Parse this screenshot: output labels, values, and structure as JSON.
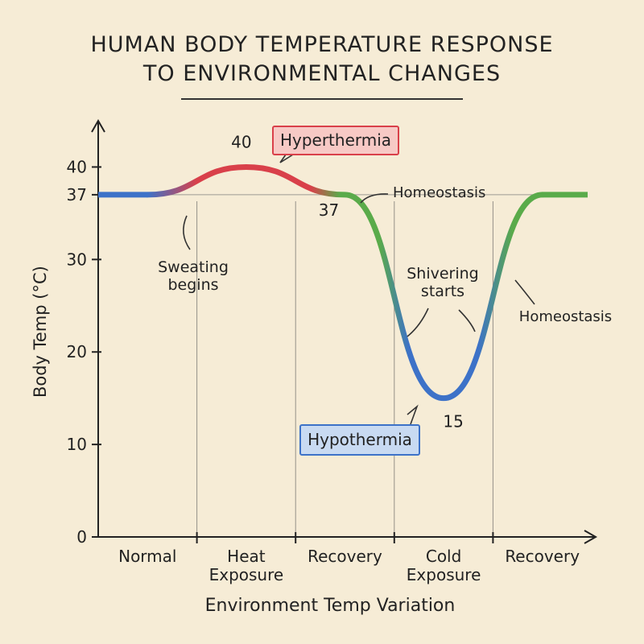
{
  "chart_data": {
    "type": "line",
    "title": "HUMAN BODY TEMPERATURE RESPONSE TO ENVIRONMENTAL CHANGES",
    "x_label": "Environment Temp Variation",
    "y_label": "Body Temp (°C)",
    "categories": [
      "Normal",
      "Heat Exposure",
      "Recovery",
      "Cold Exposure",
      "Recovery"
    ],
    "values": [
      37,
      40,
      37,
      15,
      37
    ],
    "value_labels": [
      null,
      "40",
      "37",
      "15",
      null
    ],
    "ylim": [
      0,
      45
    ],
    "yticks": [
      0,
      10,
      20,
      30,
      37,
      40
    ],
    "annotations": [
      "Hyperthermia",
      "Homeostasis",
      "Sweating begins",
      "Shivering starts",
      "Homeostasis",
      "Hypothermia"
    ]
  }
}
